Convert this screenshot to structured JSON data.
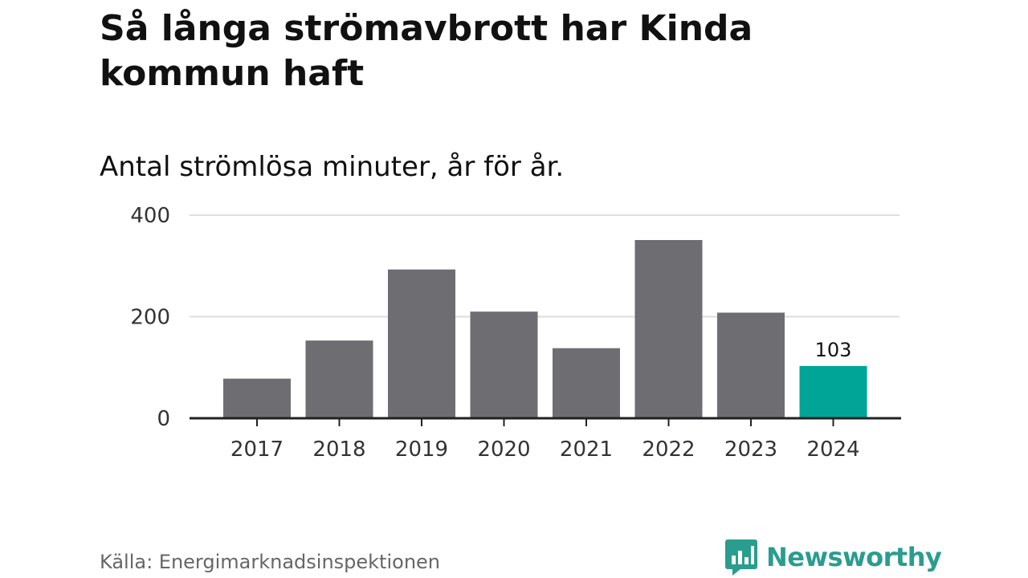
{
  "title": "Så långa strömavbrott har Kinda kommun haft",
  "subtitle": "Antal strömlösa minuter, år för år.",
  "source": "Källa: Energimarknadsinspektionen",
  "brand": "Newsworthy",
  "colors": {
    "bar": "#6e6d72",
    "highlight": "#00a597",
    "grid": "#dddddd",
    "axis": "#222222",
    "brand": "#2a9d8f"
  },
  "chart_data": {
    "type": "bar",
    "title": "Så långa strömavbrott har Kinda kommun haft",
    "subtitle": "Antal strömlösa minuter, år för år.",
    "categories": [
      "2017",
      "2018",
      "2019",
      "2020",
      "2021",
      "2022",
      "2023",
      "2024"
    ],
    "values": [
      78,
      153,
      293,
      210,
      138,
      351,
      208,
      103
    ],
    "highlight_index": 7,
    "data_labels": [
      {
        "index": 7,
        "text": "103"
      }
    ],
    "yticks": [
      0,
      200,
      400
    ],
    "ylim": [
      0,
      400
    ],
    "xlabel": "",
    "ylabel": "",
    "grid": true
  }
}
